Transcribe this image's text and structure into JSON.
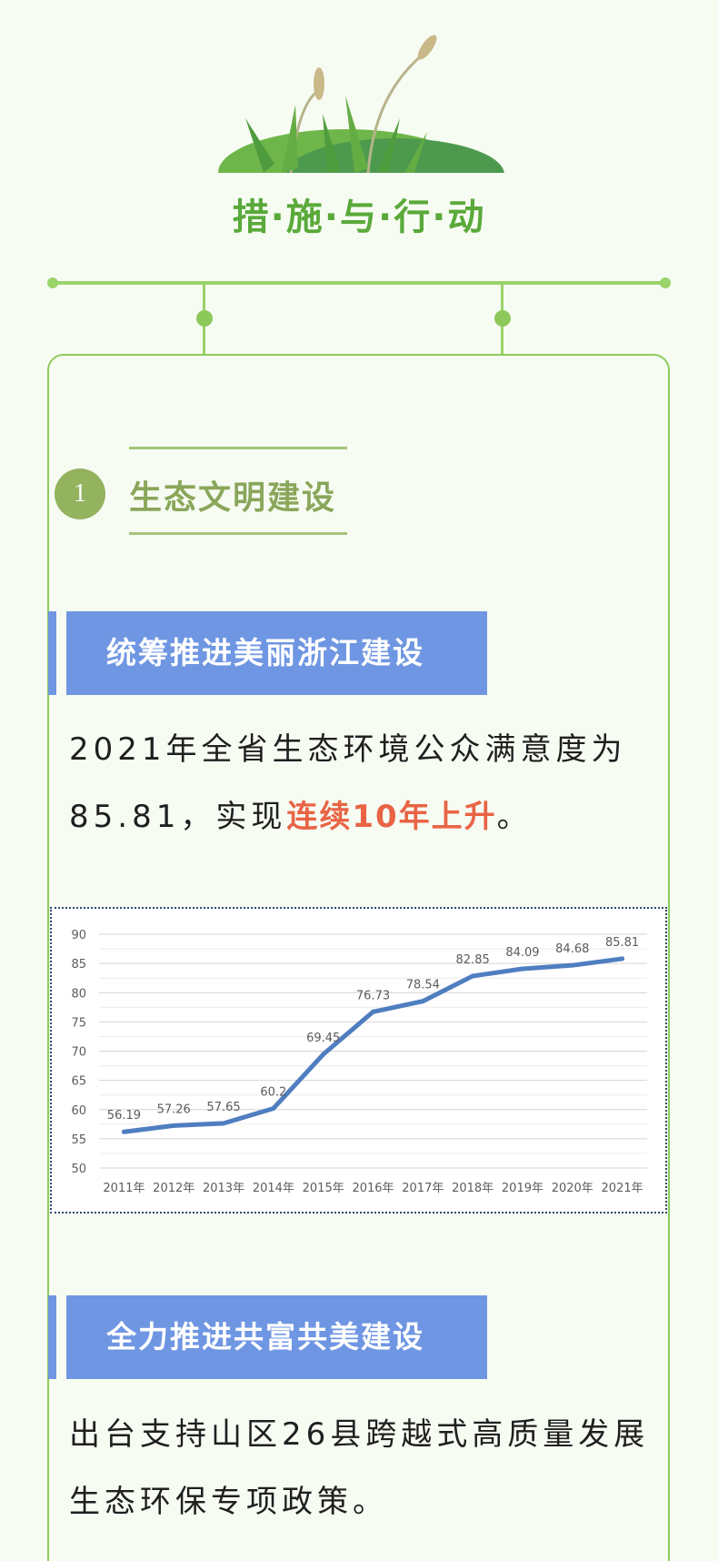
{
  "header": {
    "title": "措·施·与·行·动"
  },
  "section": {
    "number": "1",
    "title": "生态文明建设"
  },
  "block1": {
    "banner": "统筹推进美丽浙江建设",
    "text_prefix": "2021年全省生态环境公众满意度为85.81，实现",
    "text_highlight": "连续10年上升",
    "text_suffix": "。"
  },
  "block2": {
    "banner": "全力推进共富共美建设",
    "text": "出台支持山区26县跨越式高质量发展生态环保专项政策。"
  },
  "colors": {
    "page_bg": "#f7fcf3",
    "green": "#5aa93a",
    "banner_blue": "#6f96e2",
    "highlight_red": "#e86445",
    "line_blue": "#4f7ec0"
  },
  "chart_data": {
    "type": "line",
    "categories": [
      "2011年",
      "2012年",
      "2013年",
      "2014年",
      "2015年",
      "2016年",
      "2017年",
      "2018年",
      "2019年",
      "2020年",
      "2021年"
    ],
    "values": [
      56.19,
      57.26,
      57.65,
      60.2,
      69.45,
      76.73,
      78.54,
      82.85,
      84.09,
      84.68,
      85.81
    ],
    "value_labels": [
      "56.19",
      "57.26",
      "57.65",
      "60.2",
      "69.45",
      "76.73",
      "78.54",
      "82.85",
      "84.09",
      "84.68",
      "85.81"
    ],
    "yticks": [
      "50",
      "55",
      "60",
      "65",
      "70",
      "75",
      "80",
      "85",
      "90"
    ],
    "ylim": [
      50,
      90
    ],
    "title": "",
    "xlabel": "",
    "ylabel": "",
    "grid": true,
    "legend": "none"
  }
}
